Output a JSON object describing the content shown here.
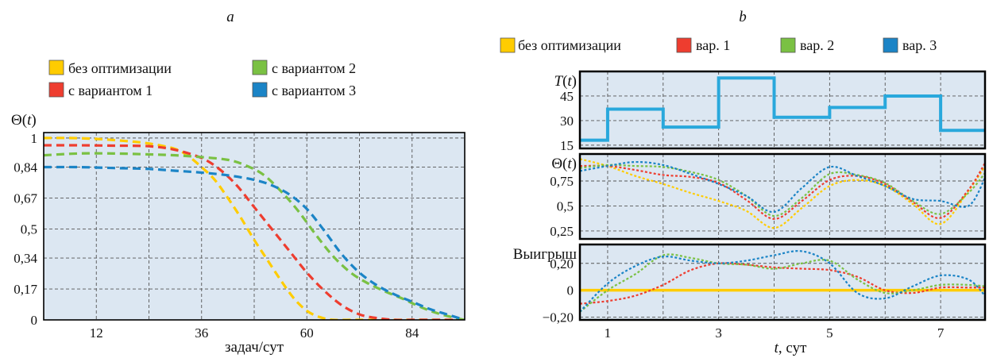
{
  "panel_a": {
    "letter": "a",
    "legend": [
      {
        "label": "без оптимизации",
        "color": "#ffcc00"
      },
      {
        "label": "с вариантом 2",
        "color": "#7ac143"
      },
      {
        "label": "с вариантом 1",
        "color": "#ee3d2f"
      },
      {
        "label": "с вариантом 3",
        "color": "#1b84c6"
      }
    ]
  },
  "panel_b": {
    "letter": "b",
    "legend": [
      {
        "label": "без оптимизации",
        "color": "#ffcc00"
      },
      {
        "label": "вар. 1",
        "color": "#ee3d2f"
      },
      {
        "label": "вар. 2",
        "color": "#7ac143"
      },
      {
        "label": "вар. 3",
        "color": "#1b84c6"
      }
    ],
    "xlabel_var": "t",
    "xlabel_unit": ", сут"
  },
  "colors": {
    "plot_bg": "#dce7f2",
    "grid": "#555555",
    "yellow": "#ffcc00",
    "red": "#ee3d2f",
    "green": "#7ac143",
    "blue": "#1b84c6",
    "step": "#29a8dc"
  },
  "chart_data": [
    {
      "panel": "a",
      "type": "line",
      "title": "",
      "xlabel": "задач/сут",
      "ylabel": "Θ(t)",
      "xlim": [
        0,
        96
      ],
      "ylim": [
        0,
        1.03
      ],
      "xticks": [
        12,
        36,
        60,
        84
      ],
      "xtick_labels": [
        "12",
        "36",
        "60",
        "84"
      ],
      "yticks": [
        0,
        0.17,
        0.34,
        0.5,
        0.67,
        0.84,
        1
      ],
      "ytick_labels": [
        "0",
        "0,17",
        "0,34",
        "0,5",
        "0,67",
        "0,84",
        "1"
      ],
      "grid": true,
      "legend_position": "top",
      "series": [
        {
          "name": "без оптимизации",
          "color": "#ffcc00",
          "x": [
            0,
            6,
            12,
            18,
            24,
            30,
            33,
            36,
            39,
            42,
            45,
            48,
            51,
            54,
            57,
            60,
            63,
            66,
            70,
            78,
            86,
            96
          ],
          "y": [
            1.0,
            1.0,
            0.995,
            0.985,
            0.97,
            0.94,
            0.9,
            0.84,
            0.77,
            0.67,
            0.56,
            0.44,
            0.33,
            0.22,
            0.12,
            0.05,
            0.015,
            0.0,
            0.0,
            0.0,
            0.0,
            0.0
          ]
        },
        {
          "name": "с вариантом 1",
          "color": "#ee3d2f",
          "x": [
            0,
            8,
            16,
            24,
            30,
            36,
            40,
            44,
            48,
            52,
            56,
            60,
            64,
            68,
            72,
            76,
            80,
            84,
            90,
            96
          ],
          "y": [
            0.96,
            0.96,
            0.958,
            0.955,
            0.935,
            0.89,
            0.83,
            0.74,
            0.62,
            0.5,
            0.38,
            0.26,
            0.16,
            0.08,
            0.03,
            0.01,
            0.0,
            0.0,
            0.0,
            0.0
          ]
        },
        {
          "name": "с вариантом 2",
          "color": "#7ac143",
          "x": [
            0,
            8,
            16,
            24,
            30,
            36,
            42,
            46,
            50,
            54,
            58,
            62,
            66,
            70,
            74,
            78,
            82,
            86,
            90,
            94,
            96
          ],
          "y": [
            0.905,
            0.915,
            0.915,
            0.91,
            0.905,
            0.895,
            0.88,
            0.85,
            0.8,
            0.71,
            0.6,
            0.47,
            0.35,
            0.26,
            0.2,
            0.155,
            0.115,
            0.07,
            0.035,
            0.01,
            0.0
          ]
        },
        {
          "name": "с вариантом 3",
          "color": "#1b84c6",
          "x": [
            0,
            8,
            16,
            24,
            30,
            36,
            42,
            48,
            52,
            56,
            60,
            64,
            68,
            72,
            76,
            80,
            84,
            88,
            92,
            96
          ],
          "y": [
            0.84,
            0.84,
            0.835,
            0.83,
            0.82,
            0.81,
            0.795,
            0.77,
            0.74,
            0.69,
            0.61,
            0.49,
            0.36,
            0.26,
            0.19,
            0.14,
            0.1,
            0.06,
            0.03,
            0.0
          ]
        }
      ]
    },
    {
      "panel": "b-top",
      "type": "line",
      "title": "",
      "xlabel": "",
      "ylabel": "T(t)",
      "xlim": [
        0.5,
        7.8
      ],
      "ylim": [
        13,
        60
      ],
      "yticks": [
        15,
        30,
        45
      ],
      "ytick_labels": [
        "15",
        "30",
        "45"
      ],
      "grid": true,
      "series": [
        {
          "name": "",
          "color": "#29a8dc",
          "step": true,
          "x": [
            0.5,
            1,
            1,
            2,
            2,
            3,
            3,
            4,
            4,
            5,
            5,
            6,
            6,
            7,
            7,
            7.8
          ],
          "y": [
            18,
            18,
            37,
            37,
            26,
            26,
            56,
            56,
            32,
            32,
            38,
            38,
            45,
            45,
            24,
            24
          ]
        }
      ]
    },
    {
      "panel": "b-mid",
      "type": "line",
      "title": "",
      "xlabel": "",
      "ylabel": "Θ(t)",
      "xlim": [
        0.5,
        7.8
      ],
      "ylim": [
        0.17,
        1.02
      ],
      "yticks": [
        0.25,
        0.5,
        0.75
      ],
      "ytick_labels": [
        "0,25",
        "0,5",
        "0,75"
      ],
      "grid": true,
      "series": [
        {
          "name": "без оптимизации",
          "color": "#ffcc00",
          "x": [
            0.5,
            1,
            1.5,
            2,
            2.5,
            3,
            3.5,
            4,
            4.5,
            5,
            5.5,
            6,
            6.5,
            7,
            7.5,
            7.8
          ],
          "y": [
            0.97,
            0.9,
            0.8,
            0.72,
            0.63,
            0.55,
            0.45,
            0.28,
            0.48,
            0.7,
            0.76,
            0.7,
            0.52,
            0.32,
            0.65,
            0.9
          ]
        },
        {
          "name": "вар. 1",
          "color": "#ee3d2f",
          "x": [
            0.5,
            1,
            1.5,
            2,
            2.5,
            3,
            3.5,
            4,
            4.5,
            5,
            5.5,
            6,
            6.5,
            7,
            7.5,
            7.8
          ],
          "y": [
            0.9,
            0.9,
            0.86,
            0.81,
            0.79,
            0.73,
            0.56,
            0.37,
            0.55,
            0.76,
            0.8,
            0.72,
            0.54,
            0.38,
            0.66,
            0.93
          ]
        },
        {
          "name": "вар. 2",
          "color": "#7ac143",
          "x": [
            0.5,
            1,
            1.5,
            2,
            2.5,
            3,
            3.5,
            4,
            4.5,
            5,
            5.5,
            6,
            6.5,
            7,
            7.5,
            7.8
          ],
          "y": [
            0.88,
            0.91,
            0.9,
            0.89,
            0.84,
            0.76,
            0.6,
            0.4,
            0.58,
            0.82,
            0.81,
            0.73,
            0.55,
            0.42,
            0.63,
            0.83
          ]
        },
        {
          "name": "вар. 3",
          "color": "#1b84c6",
          "x": [
            0.5,
            1,
            1.5,
            2,
            2.5,
            3,
            3.5,
            4,
            4.5,
            5,
            5.5,
            6,
            6.5,
            7,
            7.5,
            7.8
          ],
          "y": [
            0.85,
            0.9,
            0.94,
            0.91,
            0.82,
            0.72,
            0.6,
            0.44,
            0.68,
            0.89,
            0.8,
            0.7,
            0.57,
            0.55,
            0.5,
            0.78
          ]
        }
      ]
    },
    {
      "panel": "b-bottom",
      "type": "line",
      "title": "",
      "xlabel": "t, сут",
      "ylabel": "Выигрыш",
      "xlim": [
        0.5,
        7.8
      ],
      "ylim": [
        -0.22,
        0.34
      ],
      "xticks": [
        1,
        3,
        5,
        7
      ],
      "xtick_labels": [
        "1",
        "3",
        "5",
        "7"
      ],
      "yticks": [
        -0.2,
        0,
        0.2
      ],
      "ytick_labels": [
        "−0,20",
        "0",
        "0,20"
      ],
      "grid": true,
      "series": [
        {
          "name": "без оптимизации",
          "color": "#ffcc00",
          "x": [
            0.5,
            7.8
          ],
          "y": [
            0,
            0
          ]
        },
        {
          "name": "вар. 1",
          "color": "#ee3d2f",
          "x": [
            0.5,
            1,
            1.5,
            2,
            2.5,
            3,
            3.5,
            4,
            4.5,
            5,
            5.5,
            6,
            6.5,
            7,
            7.5,
            7.8
          ],
          "y": [
            -0.1,
            -0.08,
            -0.04,
            0.04,
            0.15,
            0.2,
            0.19,
            0.17,
            0.16,
            0.15,
            0.1,
            0.0,
            -0.02,
            0.02,
            0.02,
            0.02
          ]
        },
        {
          "name": "вар. 2",
          "color": "#7ac143",
          "x": [
            0.5,
            1,
            1.5,
            2,
            2.5,
            3,
            3.5,
            4,
            4.5,
            5,
            5.5,
            6,
            6.5,
            7,
            7.5,
            7.8
          ],
          "y": [
            -0.16,
            0.0,
            0.12,
            0.26,
            0.24,
            0.2,
            0.19,
            0.16,
            0.2,
            0.22,
            0.08,
            -0.02,
            0.0,
            0.04,
            0.04,
            0.03
          ]
        },
        {
          "name": "вар. 3",
          "color": "#1b84c6",
          "x": [
            0.5,
            1,
            1.5,
            2,
            2.5,
            3,
            3.5,
            4,
            4.5,
            5,
            5.5,
            6,
            6.5,
            7,
            7.5,
            7.8
          ],
          "y": [
            -0.16,
            0.05,
            0.18,
            0.25,
            0.22,
            0.2,
            0.22,
            0.26,
            0.29,
            0.2,
            -0.02,
            -0.06,
            0.03,
            0.11,
            0.08,
            -0.04
          ]
        }
      ]
    }
  ]
}
